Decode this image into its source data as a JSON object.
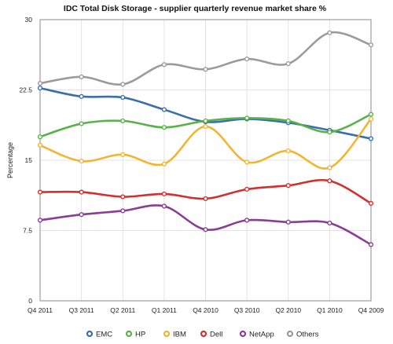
{
  "chart_data": {
    "type": "line",
    "title": "IDC Total Disk Storage - supplier quarterly revenue market share %",
    "ylabel": "Percentage",
    "xlabel": "",
    "categories": [
      "Q4 2011",
      "Q3 2011",
      "Q2 2011",
      "Q1 2011",
      "Q4 2010",
      "Q3 2010",
      "Q2 2010",
      "Q1 2010",
      "Q4 2009"
    ],
    "ylim": [
      0,
      30
    ],
    "yticks": [
      0,
      7.5,
      15,
      22.5,
      30
    ],
    "ytick_labels": [
      "0",
      "7.5",
      "15",
      "22.5",
      "30"
    ],
    "grid": true,
    "legend_position": "bottom",
    "series": [
      {
        "name": "EMC",
        "color": "#3a6fa8",
        "values": [
          22.7,
          21.8,
          21.7,
          20.4,
          19.1,
          19.4,
          19.0,
          18.2,
          17.3
        ]
      },
      {
        "name": "HP",
        "color": "#58b24a",
        "values": [
          17.5,
          18.9,
          19.2,
          18.5,
          19.2,
          19.5,
          19.2,
          18.0,
          19.9
        ]
      },
      {
        "name": "IBM",
        "color": "#f2b532",
        "values": [
          16.6,
          14.9,
          15.6,
          14.6,
          18.6,
          14.8,
          16.0,
          14.2,
          19.4
        ]
      },
      {
        "name": "Dell",
        "color": "#d32f2f",
        "values": [
          11.6,
          11.6,
          11.1,
          11.4,
          10.9,
          11.9,
          12.3,
          12.8,
          10.4
        ]
      },
      {
        "name": "NetApp",
        "color": "#8a3c96",
        "values": [
          8.6,
          9.2,
          9.6,
          10.1,
          7.6,
          8.6,
          8.4,
          8.3,
          6.0
        ]
      },
      {
        "name": "Others",
        "color": "#9b9b9b",
        "values": [
          23.2,
          23.9,
          23.1,
          25.2,
          24.7,
          25.8,
          25.3,
          28.6,
          27.3
        ]
      }
    ]
  }
}
